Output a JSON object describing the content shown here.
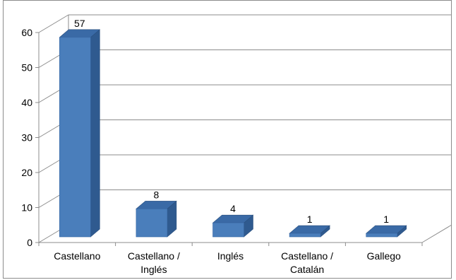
{
  "chart_data": {
    "type": "bar",
    "categories": [
      [
        "Castellano"
      ],
      [
        "Castellano /",
        "Inglés"
      ],
      [
        "Inglés"
      ],
      [
        "Castellano /",
        "Catalán"
      ],
      [
        "Gallego"
      ]
    ],
    "values": [
      57,
      8,
      4,
      1,
      1
    ],
    "data_labels": [
      "57",
      "8",
      "4",
      "1",
      "1"
    ],
    "ylim": [
      0,
      60
    ],
    "yticks": [
      "0",
      "10",
      "20",
      "30",
      "40",
      "50",
      "60"
    ],
    "grid": true,
    "legend": "none",
    "colors": {
      "bar_front": "#4a7ebb",
      "bar_side": "#2f5a8f",
      "bar_top": "#3a6aa6",
      "grid": "#8c8c8c",
      "axis": "#8c8c8c"
    }
  }
}
